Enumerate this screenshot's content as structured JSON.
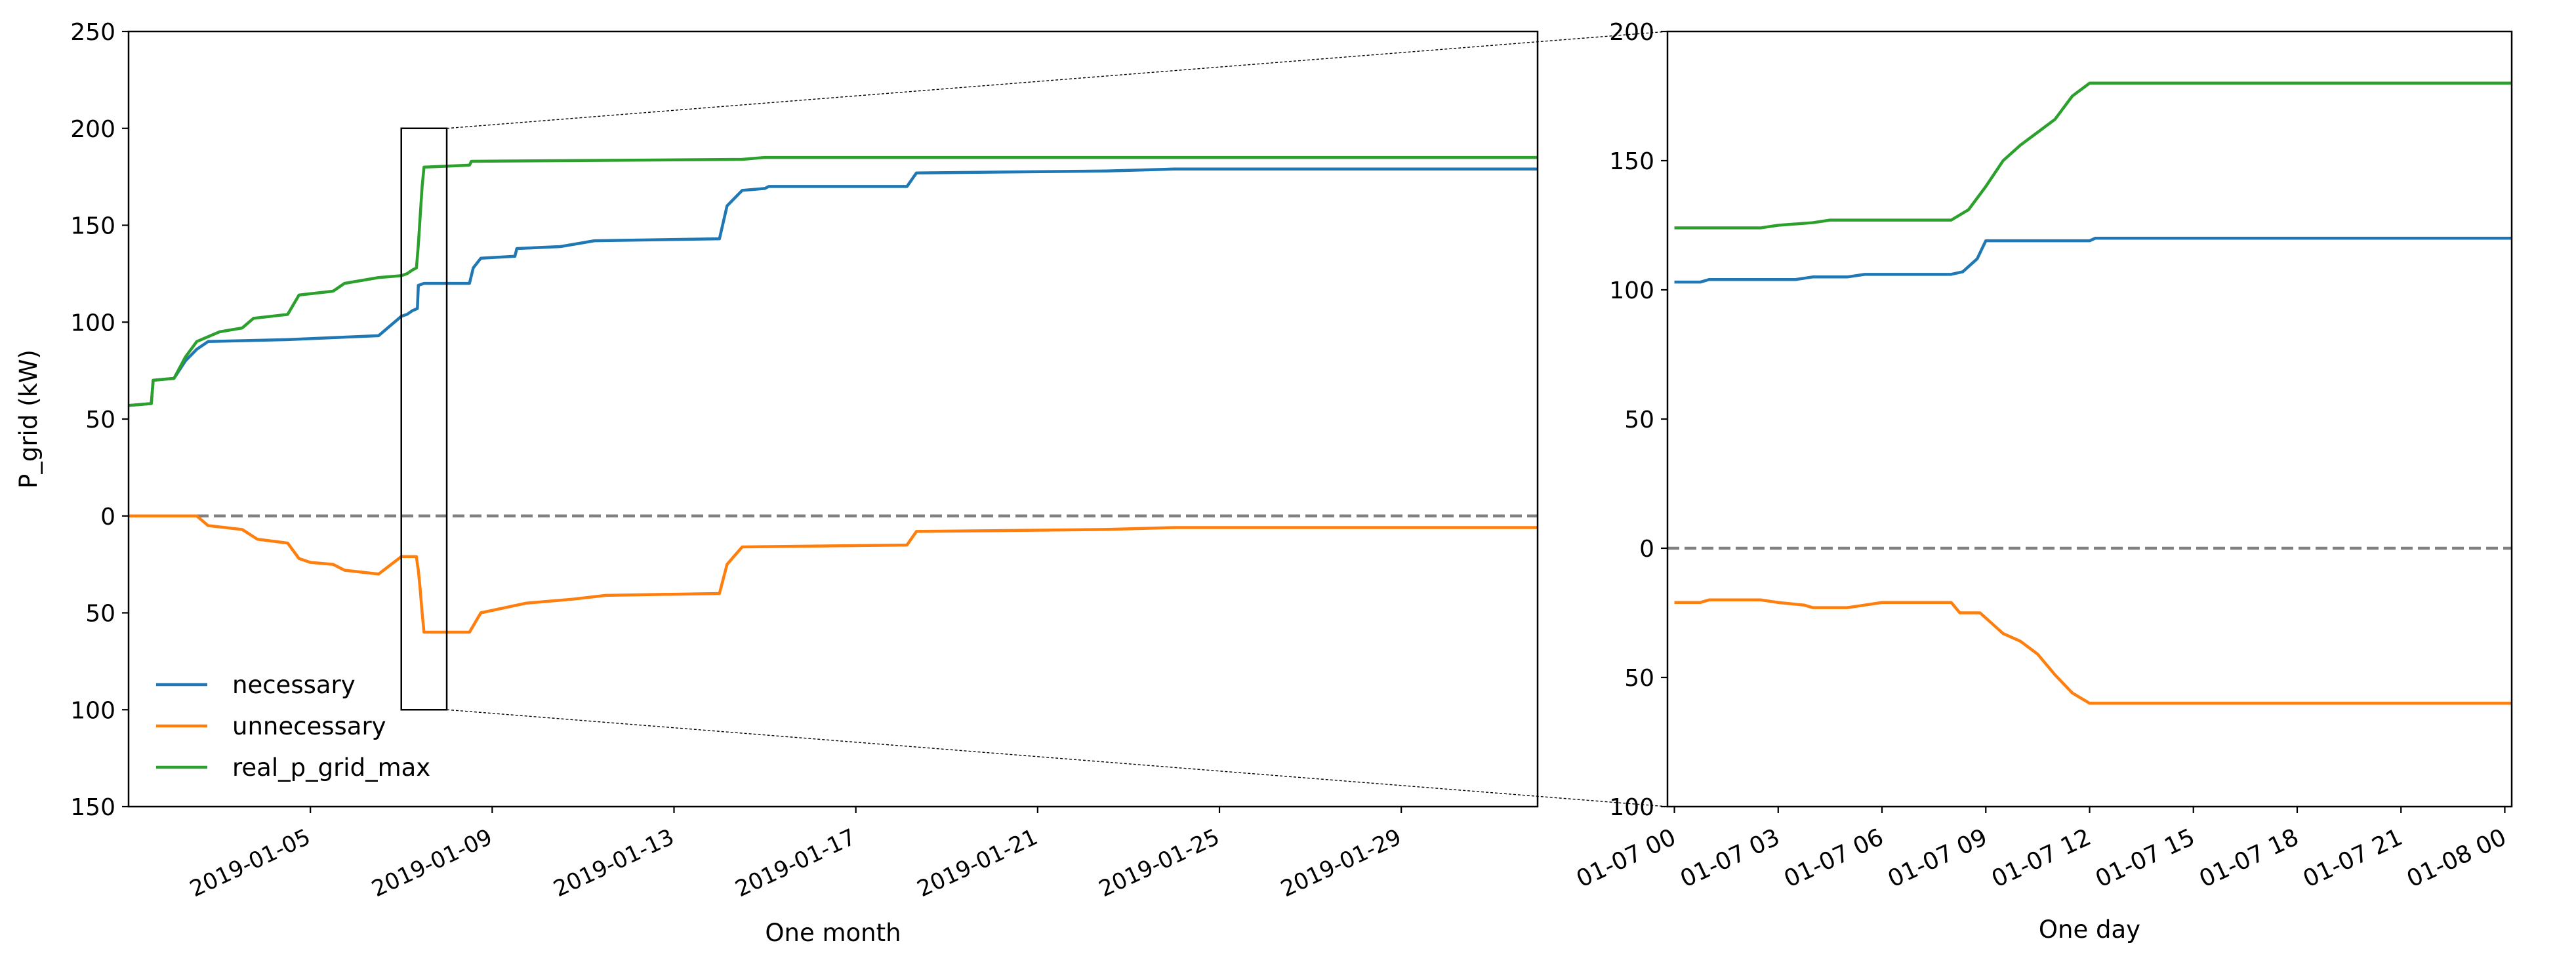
{
  "chart_data": [
    {
      "type": "line",
      "panel": "one-month",
      "xlabel": "One month",
      "ylabel": "P_grid (kW)",
      "xlim": [
        "2019-01-01",
        "2019-01-31 23:59"
      ],
      "ylim": [
        -150,
        250
      ],
      "y_tick_values": [
        -150,
        -100,
        -50,
        0,
        50,
        100,
        150,
        200,
        250
      ],
      "y_tick_labels": [
        "150",
        "100",
        "50",
        "0",
        "50",
        "100",
        "150",
        "200",
        "250"
      ],
      "x_tick_labels": [
        "2019-01-05",
        "2019-01-09",
        "2019-01-13",
        "2019-01-17",
        "2019-01-21",
        "2019-01-25",
        "2019-01-29"
      ],
      "grid": false,
      "legend_position": "lower-left",
      "zero_reference_line": {
        "y": 0,
        "style": "dashed",
        "color": "#808080"
      },
      "zoom_box": {
        "x_start": "2019-01-07 00:00",
        "x_end": "2019-01-08 00:00",
        "y_min": -100,
        "y_max": 200
      },
      "series": [
        {
          "name": "necessary",
          "color": "#1f77b4",
          "points": [
            [
              "2019-01-01 00:00",
              57
            ],
            [
              "2019-01-01 12:00",
              58
            ],
            [
              "2019-01-01 13:00",
              70
            ],
            [
              "2019-01-02 00:00",
              71
            ],
            [
              "2019-01-02 06:00",
              80
            ],
            [
              "2019-01-02 12:00",
              86
            ],
            [
              "2019-01-02 18:00",
              90
            ],
            [
              "2019-01-04 12:00",
              91
            ],
            [
              "2019-01-05 12:00",
              92
            ],
            [
              "2019-01-06 12:00",
              93
            ],
            [
              "2019-01-07 00:00",
              103
            ],
            [
              "2019-01-07 03:00",
              104
            ],
            [
              "2019-01-07 06:00",
              106
            ],
            [
              "2019-01-07 08:30",
              107
            ],
            [
              "2019-01-07 09:00",
              119
            ],
            [
              "2019-01-07 12:00",
              120
            ],
            [
              "2019-01-08 12:00",
              120
            ],
            [
              "2019-01-08 14:00",
              128
            ],
            [
              "2019-01-08 18:00",
              133
            ],
            [
              "2019-01-09 12:00",
              134
            ],
            [
              "2019-01-09 13:00",
              138
            ],
            [
              "2019-01-10 12:00",
              139
            ],
            [
              "2019-01-11 06:00",
              142
            ],
            [
              "2019-01-14 00:00",
              143
            ],
            [
              "2019-01-14 04:00",
              160
            ],
            [
              "2019-01-14 12:00",
              168
            ],
            [
              "2019-01-15 00:00",
              169
            ],
            [
              "2019-01-15 02:00",
              170
            ],
            [
              "2019-01-18 03:00",
              170
            ],
            [
              "2019-01-18 08:00",
              177
            ],
            [
              "2019-01-22 12:00",
              178
            ],
            [
              "2019-01-24 00:00",
              179
            ],
            [
              "2019-01-31 23:59",
              179
            ]
          ]
        },
        {
          "name": "unnecessary",
          "color": "#ff7f0e",
          "points": [
            [
              "2019-01-01 00:00",
              0
            ],
            [
              "2019-01-02 12:00",
              0
            ],
            [
              "2019-01-02 18:00",
              -5
            ],
            [
              "2019-01-03 12:00",
              -7
            ],
            [
              "2019-01-03 20:00",
              -12
            ],
            [
              "2019-01-04 12:00",
              -14
            ],
            [
              "2019-01-04 18:00",
              -22
            ],
            [
              "2019-01-05 00:00",
              -24
            ],
            [
              "2019-01-05 12:00",
              -25
            ],
            [
              "2019-01-05 18:00",
              -28
            ],
            [
              "2019-01-06 12:00",
              -30
            ],
            [
              "2019-01-07 00:00",
              -21
            ],
            [
              "2019-01-07 08:00",
              -21
            ],
            [
              "2019-01-07 08:30",
              -25
            ],
            [
              "2019-01-07 09:00",
              -28
            ],
            [
              "2019-01-07 10:00",
              -38
            ],
            [
              "2019-01-07 11:00",
              -50
            ],
            [
              "2019-01-07 12:00",
              -60
            ],
            [
              "2019-01-08 12:00",
              -60
            ],
            [
              "2019-01-08 18:00",
              -50
            ],
            [
              "2019-01-09 18:00",
              -45
            ],
            [
              "2019-01-10 18:00",
              -43
            ],
            [
              "2019-01-11 12:00",
              -41
            ],
            [
              "2019-01-14 00:00",
              -40
            ],
            [
              "2019-01-14 04:00",
              -25
            ],
            [
              "2019-01-14 12:00",
              -16
            ],
            [
              "2019-01-18 03:00",
              -15
            ],
            [
              "2019-01-18 08:00",
              -8
            ],
            [
              "2019-01-22 12:00",
              -7
            ],
            [
              "2019-01-24 00:00",
              -6
            ],
            [
              "2019-01-31 23:59",
              -6
            ]
          ]
        },
        {
          "name": "real_p_grid_max",
          "color": "#2ca02c",
          "points": [
            [
              "2019-01-01 00:00",
              57
            ],
            [
              "2019-01-01 12:00",
              58
            ],
            [
              "2019-01-01 13:00",
              70
            ],
            [
              "2019-01-02 00:00",
              71
            ],
            [
              "2019-01-02 06:00",
              82
            ],
            [
              "2019-01-02 12:00",
              90
            ],
            [
              "2019-01-03 00:00",
              95
            ],
            [
              "2019-01-03 12:00",
              97
            ],
            [
              "2019-01-03 18:00",
              102
            ],
            [
              "2019-01-04 12:00",
              104
            ],
            [
              "2019-01-04 18:00",
              114
            ],
            [
              "2019-01-05 12:00",
              116
            ],
            [
              "2019-01-05 18:00",
              120
            ],
            [
              "2019-01-06 12:00",
              123
            ],
            [
              "2019-01-07 00:00",
              124
            ],
            [
              "2019-01-07 03:00",
              125
            ],
            [
              "2019-01-07 06:00",
              127
            ],
            [
              "2019-01-07 08:00",
              128
            ],
            [
              "2019-01-07 09:00",
              140
            ],
            [
              "2019-01-07 10:00",
              155
            ],
            [
              "2019-01-07 11:00",
              170
            ],
            [
              "2019-01-07 12:00",
              180
            ],
            [
              "2019-01-08 12:00",
              181
            ],
            [
              "2019-01-08 13:00",
              183
            ],
            [
              "2019-01-14 12:00",
              184
            ],
            [
              "2019-01-15 00:00",
              185
            ],
            [
              "2019-01-31 23:59",
              185
            ]
          ]
        }
      ]
    },
    {
      "type": "line",
      "panel": "one-day",
      "xlabel": "One day",
      "ylabel": "",
      "xlim": [
        "2019-01-06 23:48",
        "2019-01-08 00:12"
      ],
      "ylim": [
        -100,
        200
      ],
      "y_tick_values": [
        -100,
        -50,
        0,
        50,
        100,
        150,
        200
      ],
      "y_tick_labels": [
        "100",
        "50",
        "0",
        "50",
        "100",
        "150",
        "200"
      ],
      "x_tick_labels": [
        "01-07 00",
        "01-07 03",
        "01-07 06",
        "01-07 09",
        "01-07 12",
        "01-07 15",
        "01-07 18",
        "01-07 21",
        "01-08 00"
      ],
      "grid": false,
      "zero_reference_line": {
        "y": 0,
        "style": "dashed",
        "color": "#808080"
      },
      "series": [
        {
          "name": "necessary",
          "color": "#1f77b4",
          "points": [
            [
              "2019-01-07 00:00",
              103
            ],
            [
              "2019-01-07 00:45",
              103
            ],
            [
              "2019-01-07 01:00",
              104
            ],
            [
              "2019-01-07 03:30",
              104
            ],
            [
              "2019-01-07 04:00",
              105
            ],
            [
              "2019-01-07 05:00",
              105
            ],
            [
              "2019-01-07 05:30",
              106
            ],
            [
              "2019-01-07 08:00",
              106
            ],
            [
              "2019-01-07 08:20",
              107
            ],
            [
              "2019-01-07 08:45",
              112
            ],
            [
              "2019-01-07 09:00",
              119
            ],
            [
              "2019-01-07 12:00",
              119
            ],
            [
              "2019-01-07 12:10",
              120
            ],
            [
              "2019-01-08 00:12",
              120
            ]
          ]
        },
        {
          "name": "unnecessary",
          "color": "#ff7f0e",
          "points": [
            [
              "2019-01-07 00:00",
              -21
            ],
            [
              "2019-01-07 00:45",
              -21
            ],
            [
              "2019-01-07 01:00",
              -20
            ],
            [
              "2019-01-07 02:30",
              -20
            ],
            [
              "2019-01-07 03:00",
              -21
            ],
            [
              "2019-01-07 03:45",
              -22
            ],
            [
              "2019-01-07 04:00",
              -23
            ],
            [
              "2019-01-07 05:00",
              -23
            ],
            [
              "2019-01-07 05:30",
              -22
            ],
            [
              "2019-01-07 06:00",
              -21
            ],
            [
              "2019-01-07 08:00",
              -21
            ],
            [
              "2019-01-07 08:15",
              -25
            ],
            [
              "2019-01-07 08:50",
              -25
            ],
            [
              "2019-01-07 09:30",
              -33
            ],
            [
              "2019-01-07 10:00",
              -36
            ],
            [
              "2019-01-07 10:30",
              -41
            ],
            [
              "2019-01-07 11:00",
              -49
            ],
            [
              "2019-01-07 11:30",
              -56
            ],
            [
              "2019-01-07 12:00",
              -60
            ],
            [
              "2019-01-08 00:12",
              -60
            ]
          ]
        },
        {
          "name": "real_p_grid_max",
          "color": "#2ca02c",
          "points": [
            [
              "2019-01-07 00:00",
              124
            ],
            [
              "2019-01-07 02:30",
              124
            ],
            [
              "2019-01-07 03:00",
              125
            ],
            [
              "2019-01-07 04:00",
              126
            ],
            [
              "2019-01-07 04:30",
              127
            ],
            [
              "2019-01-07 08:00",
              127
            ],
            [
              "2019-01-07 08:30",
              131
            ],
            [
              "2019-01-07 09:00",
              140
            ],
            [
              "2019-01-07 09:30",
              150
            ],
            [
              "2019-01-07 10:00",
              156
            ],
            [
              "2019-01-07 10:30",
              161
            ],
            [
              "2019-01-07 11:00",
              166
            ],
            [
              "2019-01-07 11:30",
              175
            ],
            [
              "2019-01-07 12:00",
              180
            ],
            [
              "2019-01-08 00:12",
              180
            ]
          ]
        }
      ]
    }
  ]
}
